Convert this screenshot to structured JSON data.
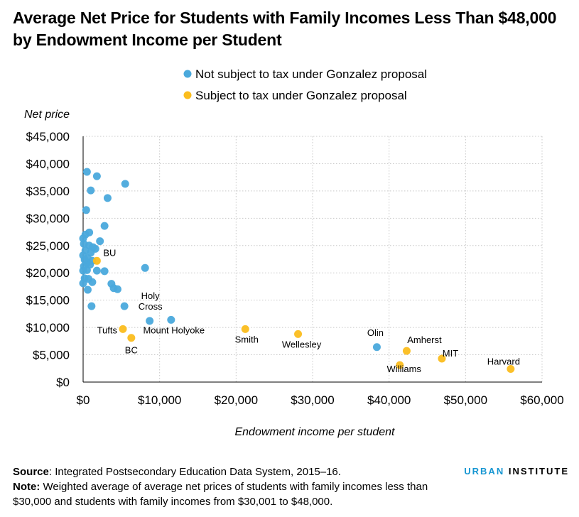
{
  "title": "Average Net Price for Students with Family Incomes Less Than $48,000 by Endowment Income per Student",
  "footer": {
    "source_label": "Source",
    "source_text": ": Integrated Postsecondary Education Data System, 2015–16.",
    "note_label": "Note:",
    "note_text": " Weighted average of average net prices of students with family incomes less than $30,000 and students with family incomes from $30,001 to $48,000."
  },
  "brand": {
    "part1": "URBAN",
    "part2": " INSTITUTE"
  },
  "colors": {
    "not_subject": "#4aa9dc",
    "subject": "#fbbd1e",
    "grid": "#c8c8c8"
  },
  "chart_data": {
    "type": "scatter",
    "xlabel": "Endowment income per student",
    "ylabel": "Net price",
    "xlim": [
      0,
      60000
    ],
    "ylim": [
      0,
      45000
    ],
    "x_ticks": [
      "$0",
      "$10,000",
      "$20,000",
      "$30,000",
      "$40,000",
      "$50,000",
      "$60,000"
    ],
    "y_ticks": [
      "$0",
      "$5,000",
      "$10,000",
      "$15,000",
      "$20,000",
      "$25,000",
      "$30,000",
      "$35,000",
      "$40,000",
      "$45,000"
    ],
    "grid": "dotted",
    "legend_position": "top",
    "series": [
      {
        "name": "Not subject to tax under Gonzalez proposal",
        "color": "#4aa9dc",
        "points": [
          {
            "x": 500,
            "y": 38500
          },
          {
            "x": 1800,
            "y": 37700
          },
          {
            "x": 5500,
            "y": 36300
          },
          {
            "x": 1000,
            "y": 35100
          },
          {
            "x": 3200,
            "y": 33700
          },
          {
            "x": 400,
            "y": 31500
          },
          {
            "x": 2800,
            "y": 28600
          },
          {
            "x": 800,
            "y": 27400
          },
          {
            "x": 300,
            "y": 27000
          },
          {
            "x": 0,
            "y": 26300
          },
          {
            "x": 2200,
            "y": 25800
          },
          {
            "x": 100,
            "y": 25300
          },
          {
            "x": 800,
            "y": 25000
          },
          {
            "x": 1300,
            "y": 24700
          },
          {
            "x": 1600,
            "y": 24400
          },
          {
            "x": 300,
            "y": 24100
          },
          {
            "x": 1000,
            "y": 23700
          },
          {
            "x": 0,
            "y": 23200
          },
          {
            "x": 600,
            "y": 22700
          },
          {
            "x": 200,
            "y": 22400
          },
          {
            "x": 1200,
            "y": 22200
          },
          {
            "x": 500,
            "y": 21800
          },
          {
            "x": 900,
            "y": 21500
          },
          {
            "x": 100,
            "y": 21200
          },
          {
            "x": 8100,
            "y": 20900
          },
          {
            "x": 500,
            "y": 20500
          },
          {
            "x": 0,
            "y": 20400
          },
          {
            "x": 1800,
            "y": 20400
          },
          {
            "x": 2800,
            "y": 20300
          },
          {
            "x": 200,
            "y": 19000
          },
          {
            "x": 700,
            "y": 18900
          },
          {
            "x": 1200,
            "y": 18300
          },
          {
            "x": 0,
            "y": 18100
          },
          {
            "x": 3700,
            "y": 18000
          },
          {
            "x": 4000,
            "y": 17200
          },
          {
            "x": 4500,
            "y": 17000
          },
          {
            "x": 600,
            "y": 16900
          },
          {
            "x": 1100,
            "y": 13900
          },
          {
            "x": 5400,
            "y": 13900
          },
          {
            "x": 8700,
            "y": 11200,
            "label": "Holy\nCross"
          },
          {
            "x": 11500,
            "y": 11400,
            "label": "Mount Holyoke"
          },
          {
            "x": 38400,
            "y": 6400,
            "label": "Olin"
          }
        ]
      },
      {
        "name": "Subject to tax under Gonzalez proposal",
        "color": "#fbbd1e",
        "points": [
          {
            "x": 1800,
            "y": 22200,
            "label": "BU"
          },
          {
            "x": 5200,
            "y": 9700,
            "label": "Tufts"
          },
          {
            "x": 6300,
            "y": 8100,
            "label": "BC"
          },
          {
            "x": 21200,
            "y": 9700,
            "label": "Smith"
          },
          {
            "x": 28100,
            "y": 8800,
            "label": "Wellesley"
          },
          {
            "x": 42300,
            "y": 5700,
            "label": "Amherst"
          },
          {
            "x": 41400,
            "y": 3100,
            "label": "Williams"
          },
          {
            "x": 46900,
            "y": 4300,
            "label": "MIT"
          },
          {
            "x": 55900,
            "y": 2400,
            "label": "Harvard"
          }
        ]
      }
    ]
  }
}
